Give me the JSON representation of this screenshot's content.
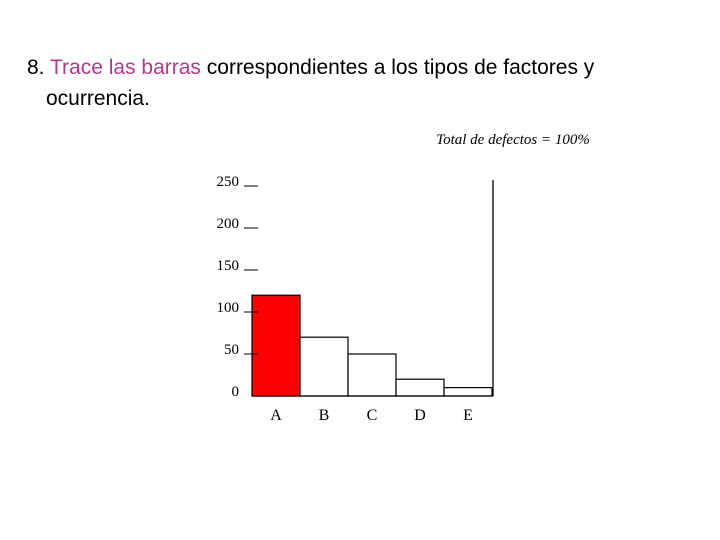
{
  "slide": {
    "title_number": "8.",
    "title_highlight": "Trace las barras",
    "title_rest": "correspondientes a los tipos de factores y",
    "title_line2": "ocurrencia."
  },
  "colors": {
    "highlight_text": "#b23a8c",
    "bar_highlight": "#ff0000",
    "bar_default": "#ffffff",
    "axis": "#000000"
  },
  "chart_data": {
    "type": "bar",
    "annotation": "Total de defectos = 100%",
    "categories": [
      "A",
      "B",
      "C",
      "D",
      "E"
    ],
    "values": [
      120,
      70,
      50,
      20,
      10
    ],
    "highlighted": [
      "A"
    ],
    "yticks": [
      "250",
      "200",
      "150",
      "100",
      "50",
      "0"
    ],
    "ylim": [
      0,
      250
    ],
    "xlabel": "",
    "ylabel": "",
    "grid": false,
    "legend": "none"
  }
}
